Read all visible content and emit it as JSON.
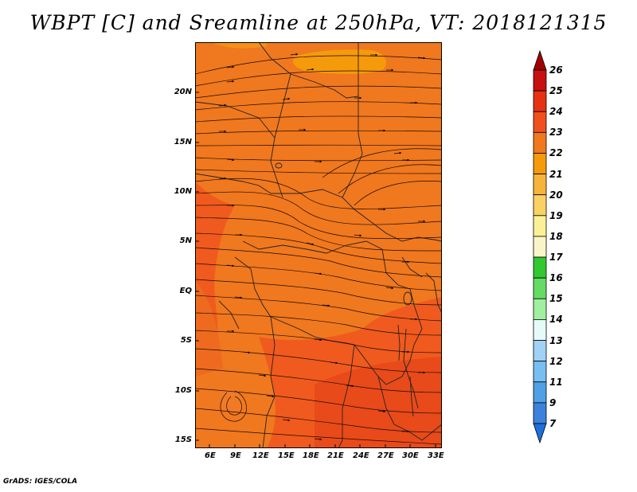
{
  "title": "WBPT [C] and Sreamline at 250hPa, VT: 2018121315",
  "footer": "GrADS: IGES/COLA",
  "map": {
    "lat_labels": [
      "20N",
      "15N",
      "10N",
      "5N",
      "EQ",
      "5S",
      "10S",
      "15S"
    ],
    "lon_labels": [
      "6E",
      "9E",
      "12E",
      "15E",
      "18E",
      "21E",
      "24E",
      "27E",
      "30E",
      "33E"
    ],
    "field_range_c": [
      21,
      25
    ]
  },
  "colorbar": {
    "levels": [
      "26",
      "25",
      "24",
      "23",
      "22",
      "21",
      "20",
      "19",
      "18",
      "17",
      "16",
      "15",
      "14",
      "13",
      "12",
      "11",
      "9",
      "7"
    ],
    "colors": [
      "#a00000",
      "#c81010",
      "#e63212",
      "#f0501e",
      "#f0781e",
      "#f59a0a",
      "#f5b43c",
      "#fad264",
      "#faf096",
      "#faf5c8",
      "#32c832",
      "#64dc64",
      "#a0f0a0",
      "#e6fafa",
      "#a0d2f5",
      "#78bef0",
      "#50a0e6",
      "#3c82dc",
      "#1e6edc"
    ]
  }
}
